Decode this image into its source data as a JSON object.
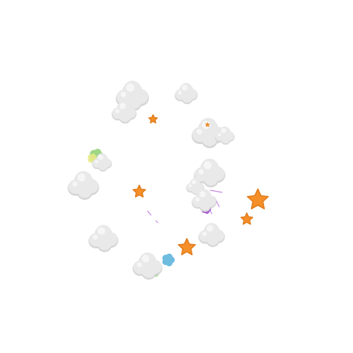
{
  "colors": {
    "background": "#ffffff",
    "cloud_fill": "#e9e9ea",
    "cloud_shade": "#d6d6d8",
    "cloud_highlight": "#f6f6f7",
    "star": "#f58f2a",
    "star_shade": "#e07b1a",
    "spark_purple": "#b25ad6",
    "bloom_purple": "#a24fce",
    "bloom_blue": "#5fb5dc",
    "bloom_green": "#96d27a",
    "bloom_yellow": "#e7ea8a",
    "bloom_pink": "#f4b0b0"
  },
  "elements": {
    "cloud": "puff-cloud",
    "star": "star-icon",
    "bloom": "color-bloom",
    "spark": "spark-streak"
  },
  "counts": {
    "clouds": 13,
    "stars": 6,
    "blooms": 5
  }
}
